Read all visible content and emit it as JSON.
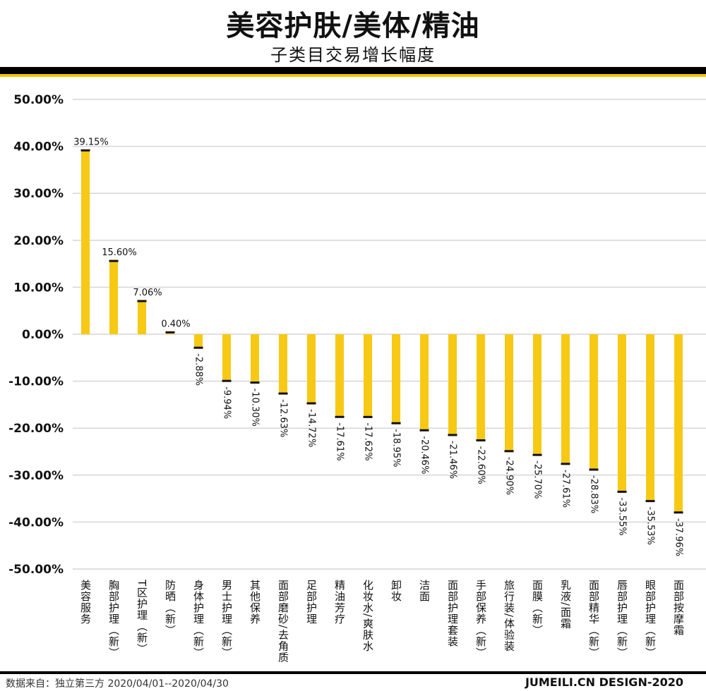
{
  "header": {
    "title": "美容护肤/美体/精油",
    "subtitle": "子类目交易增长幅度"
  },
  "footer": {
    "source": "数据来自：独立第三方  2020/04/01--2020/04/30",
    "credit": "JUMEILI.CN DESIGN-2020"
  },
  "colors": {
    "bar": "#f7c914",
    "cap": "#111111",
    "grid": "#d6d6d6",
    "accent_band": "#f5c400"
  },
  "chart_data": {
    "type": "bar",
    "title": "美容护肤/美体/精油",
    "subtitle": "子类目交易增长幅度",
    "ylim": [
      -50,
      50
    ],
    "yticks": [
      "50.00%",
      "40.00%",
      "30.00%",
      "20.00%",
      "10.00%",
      "0.00%",
      "-10.00%",
      "-20.00%",
      "-30.00%",
      "-40.00%",
      "-50.00%"
    ],
    "grid": true,
    "categories": [
      "美容服务",
      "胸部护理（新）",
      "T区护理（新）",
      "防晒（新）",
      "身体护理（新）",
      "男士护理（新）",
      "其他保养",
      "面部磨砂/去角质",
      "足部护理",
      "精油芳疗",
      "化妆水/爽肤水",
      "卸妆",
      "洁面",
      "面部护理套装",
      "手部保养（新）",
      "旅行装/体验装",
      "面膜（新）",
      "乳液/面霜",
      "面部精华（新）",
      "唇部护理（新）",
      "眼部护理（新）",
      "面部按摩霜"
    ],
    "values": [
      39.15,
      15.6,
      7.06,
      0.4,
      -2.88,
      -9.94,
      -10.3,
      -12.63,
      -14.72,
      -17.61,
      -17.62,
      -18.95,
      -20.46,
      -21.46,
      -22.6,
      -24.9,
      -25.7,
      -27.61,
      -28.83,
      -33.55,
      -35.53,
      -37.96
    ],
    "labels": [
      "39.15%",
      "15.60%",
      "7.06%",
      "0.40%",
      "-2.88%",
      "-9.94%",
      "-10.30%",
      "-12.63%",
      "-14.72%",
      "-17.61%",
      "-17.62%",
      "-18.95%",
      "-20.46%",
      "-21.46%",
      "-22.60%",
      "-24.90%",
      "-25.70%",
      "-27.61%",
      "-28.83%",
      "-33.55%",
      "-35.53%",
      "-37.96%"
    ]
  }
}
